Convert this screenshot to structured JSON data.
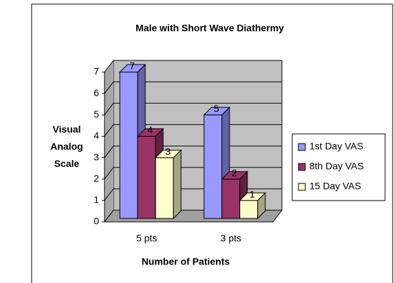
{
  "chart_data": {
    "type": "bar3d",
    "title": "Male with Short Wave Diathermy",
    "y_label": "Visual Analog Scale",
    "x_label": "Number of Patients",
    "categories": [
      "5 pts",
      "3 pts"
    ],
    "series": [
      {
        "name": "1st Day VAS",
        "color": "#9999ff",
        "values": [
          7,
          5
        ]
      },
      {
        "name": "8th Day VAS",
        "color": "#993366",
        "values": [
          4,
          2
        ]
      },
      {
        "name": "15 Day VAS",
        "color": "#ffffcc",
        "values": [
          3,
          1
        ]
      }
    ],
    "ylim": [
      0,
      7
    ],
    "yticks": [
      0,
      1,
      2,
      3,
      4,
      5,
      6,
      7
    ],
    "grid": true,
    "legend": "right"
  }
}
